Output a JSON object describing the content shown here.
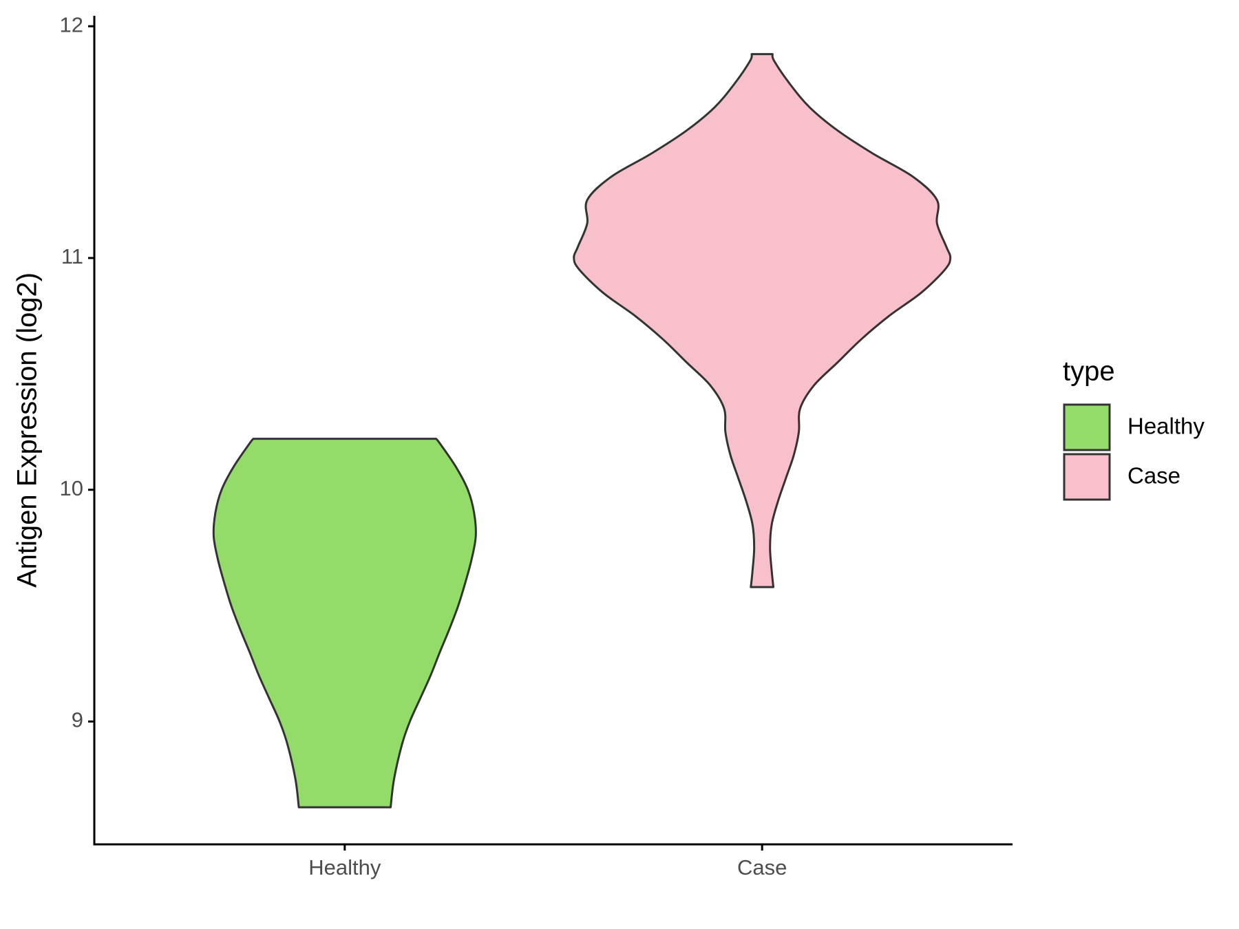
{
  "chart_data": {
    "type": "violin",
    "y_label": "Antigen Expression (log2)",
    "categories": [
      "Healthy",
      "Case"
    ],
    "series": [
      {
        "name": "Healthy",
        "color": "#93dc6a",
        "y": [
          8.63,
          8.75,
          8.9,
          9.0,
          9.1,
          9.2,
          9.3,
          9.4,
          9.5,
          9.6,
          9.7,
          9.8,
          9.9,
          10.0,
          10.1,
          10.2,
          10.22
        ],
        "density": [
          0.11,
          0.118,
          0.137,
          0.156,
          0.181,
          0.206,
          0.228,
          0.251,
          0.272,
          0.289,
          0.304,
          0.314,
          0.31,
          0.295,
          0.266,
          0.228,
          0.219
        ]
      },
      {
        "name": "Case",
        "color": "#f7c0cb",
        "y": [
          9.58,
          9.65,
          9.75,
          9.85,
          9.95,
          10.05,
          10.15,
          10.25,
          10.35,
          10.45,
          10.55,
          10.65,
          10.75,
          10.85,
          10.95,
          11.0,
          11.05,
          11.15,
          11.25,
          11.35,
          11.45,
          11.55,
          11.65,
          11.75,
          11.85,
          11.88
        ],
        "density": [
          0.027,
          0.023,
          0.019,
          0.023,
          0.038,
          0.057,
          0.076,
          0.088,
          0.091,
          0.124,
          0.181,
          0.238,
          0.304,
          0.381,
          0.438,
          0.451,
          0.441,
          0.419,
          0.419,
          0.362,
          0.266,
          0.181,
          0.114,
          0.067,
          0.029,
          0.025
        ]
      }
    ],
    "ylim": [
      8.47,
      12.045
    ],
    "yticks": [
      9,
      10,
      11,
      12
    ],
    "legend_title": "type",
    "legend_position": "right"
  }
}
